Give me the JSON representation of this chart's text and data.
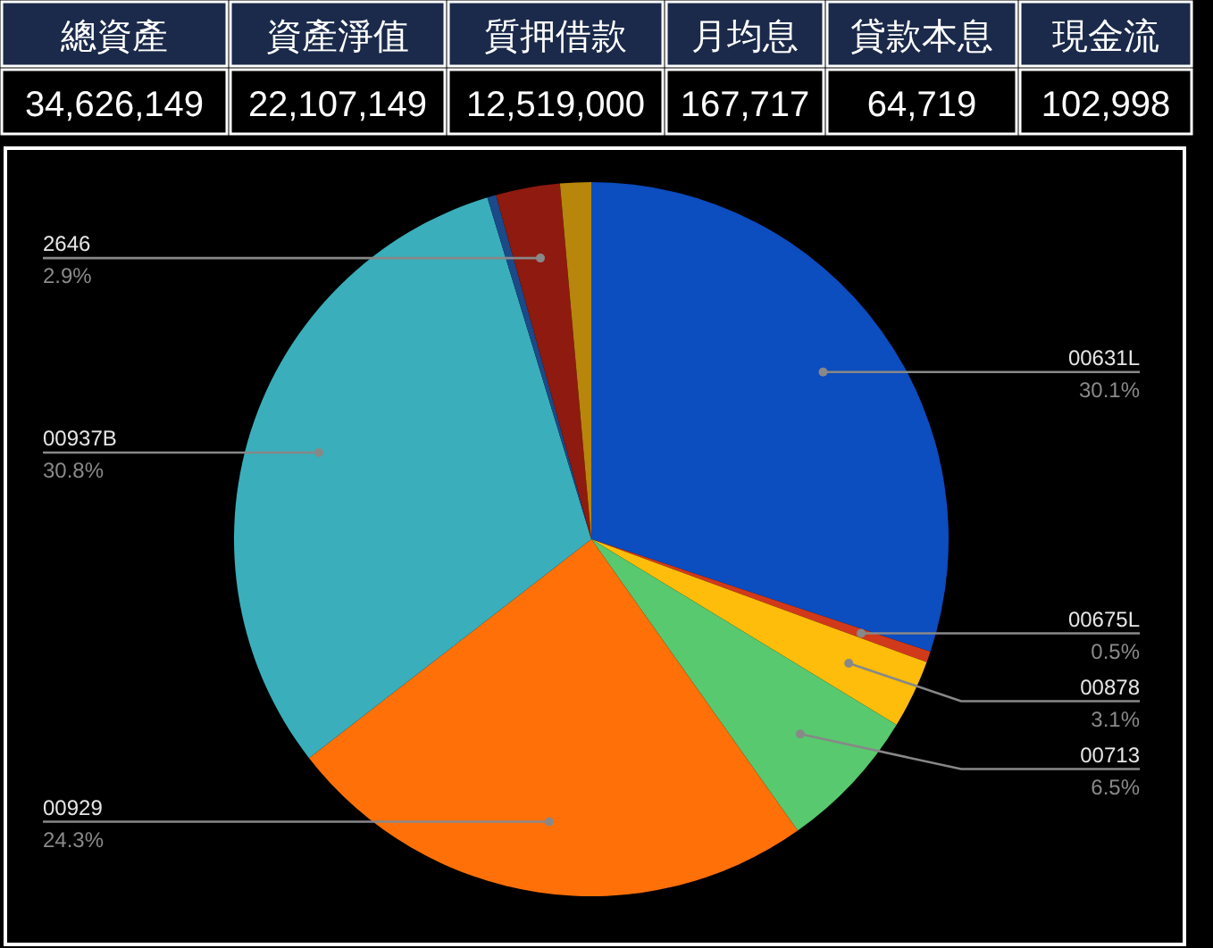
{
  "chart_data": [
    {
      "type": "other",
      "categories": [
        "總資產",
        "資產淨值",
        "質押借款",
        "月均息",
        "貸款本息",
        "現金流"
      ],
      "value_labels": [
        "34,626,149",
        "22,107,149",
        "12,519,000",
        "167,717",
        "64,719",
        "102,998"
      ]
    },
    {
      "type": "pie",
      "categories": [
        "00631L",
        "00675L",
        "00878",
        "00713",
        "00929",
        "00937B",
        null,
        "2646",
        null
      ],
      "values": [
        30.1,
        0.5,
        3.1,
        6.5,
        24.3,
        30.8,
        0.4,
        2.9,
        1.4
      ],
      "colors": [
        "#0c4dbf",
        "#d03a1a",
        "#fdbd0a",
        "#58c96e",
        "#ff7009",
        "#3aafbb",
        "#1a4a8a",
        "#8e1a10",
        "#b8860b"
      ],
      "value_labels": [
        "30.1%",
        "0.5%",
        "3.1%",
        "6.5%",
        "24.3%",
        "30.8%",
        null,
        "2.9%",
        null
      ]
    }
  ]
}
